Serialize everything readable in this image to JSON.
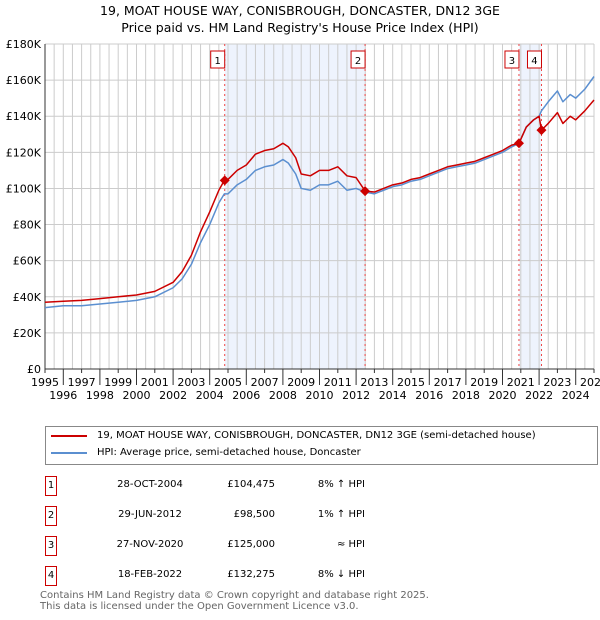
{
  "header": {
    "line1": "19, MOAT HOUSE WAY, CONISBROUGH, DONCASTER, DN12 3GE",
    "line2": "Price paid vs. HM Land Registry's House Price Index (HPI)"
  },
  "chart_data": {
    "type": "line",
    "xlim": [
      1995,
      2025
    ],
    "ylim": [
      0,
      180000
    ],
    "xticks": [
      "1995",
      "1996",
      "1997",
      "1998",
      "1999",
      "2000",
      "2001",
      "2002",
      "2003",
      "2004",
      "2005",
      "2006",
      "2007",
      "2008",
      "2009",
      "2010",
      "2011",
      "2012",
      "2013",
      "2014",
      "2015",
      "2016",
      "2017",
      "2018",
      "2019",
      "2020",
      "2021",
      "2022",
      "2023",
      "2024",
      "2025"
    ],
    "yticks": [
      "£0",
      "£20K",
      "£40K",
      "£60K",
      "£80K",
      "£100K",
      "£120K",
      "£140K",
      "£160K",
      "£180K"
    ],
    "x": [
      1995,
      1996,
      1997,
      1998,
      1999,
      2000,
      2001,
      2002,
      2002.5,
      2003,
      2003.5,
      2004,
      2004.5,
      2004.8,
      2005,
      2005.5,
      2006,
      2006.5,
      2007,
      2007.5,
      2008,
      2008.3,
      2008.7,
      2009,
      2009.5,
      2010,
      2010.5,
      2011,
      2011.5,
      2012,
      2012.5,
      2013,
      2013.5,
      2014,
      2014.5,
      2015,
      2015.5,
      2016,
      2016.5,
      2017,
      2017.5,
      2018,
      2018.5,
      2019,
      2019.5,
      2020,
      2020.5,
      2020.9,
      2021.3,
      2021.7,
      2022,
      2022.13,
      2022.5,
      2023,
      2023.3,
      2023.7,
      2024,
      2024.5,
      2025
    ],
    "series": [
      {
        "name": "19, MOAT HOUSE WAY, CONISBROUGH, DONCASTER, DN12 3GE (semi-detached house)",
        "color": "#cc0000",
        "values": [
          37000,
          37500,
          38000,
          39000,
          40000,
          41000,
          43000,
          48000,
          54000,
          63000,
          76000,
          87000,
          99000,
          104475,
          105000,
          110000,
          113000,
          119000,
          121000,
          122000,
          125000,
          123000,
          117000,
          108000,
          107000,
          110000,
          110000,
          112000,
          107000,
          106000,
          98500,
          98000,
          100000,
          102000,
          103000,
          105000,
          106000,
          108000,
          110000,
          112000,
          113000,
          114000,
          115000,
          117000,
          119000,
          121000,
          124000,
          125000,
          134000,
          138000,
          140000,
          132275,
          136000,
          142000,
          136000,
          140000,
          138000,
          143000,
          149000
        ]
      },
      {
        "name": "HPI: Average price, semi-detached house, Doncaster",
        "color": "#5b8fd0",
        "values": [
          34000,
          35000,
          35000,
          36000,
          37000,
          38000,
          40000,
          45000,
          50000,
          58000,
          70000,
          80000,
          92000,
          97000,
          97000,
          102000,
          105000,
          110000,
          112000,
          113000,
          116000,
          114000,
          108000,
          100000,
          99000,
          102000,
          102000,
          104000,
          99000,
          100000,
          98000,
          97000,
          99000,
          101000,
          102000,
          104000,
          105000,
          107000,
          109000,
          111000,
          112000,
          113000,
          114000,
          116000,
          118000,
          120000,
          123000,
          125000,
          134000,
          138000,
          140000,
          143000,
          148000,
          154000,
          148000,
          152000,
          150000,
          155000,
          162000
        ]
      }
    ],
    "sales": [
      {
        "label": "1",
        "x": 2004.82,
        "value": 104475,
        "date": "28-OCT-2004",
        "price": "£104,475",
        "hpi": "8% ↑ HPI"
      },
      {
        "label": "2",
        "x": 2012.49,
        "value": 98500,
        "date": "29-JUN-2012",
        "price": "£98,500",
        "hpi": "1% ↑ HPI"
      },
      {
        "label": "3",
        "x": 2020.9,
        "value": 125000,
        "date": "27-NOV-2020",
        "price": "£125,000",
        "hpi": "≈ HPI"
      },
      {
        "label": "4",
        "x": 2022.13,
        "value": 132275,
        "date": "18-FEB-2022",
        "price": "£132,275",
        "hpi": "8% ↓ HPI"
      }
    ]
  },
  "footer": {
    "line1": "Contains HM Land Registry data © Crown copyright and database right 2025.",
    "line2": "This data is licensed under the Open Government Licence v3.0."
  }
}
